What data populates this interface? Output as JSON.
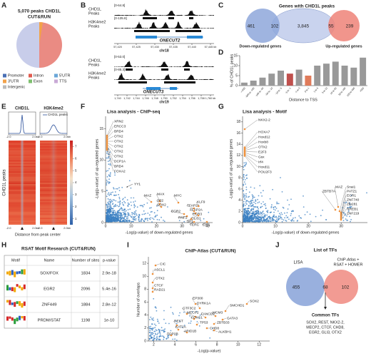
{
  "panel_a": {
    "label": "A",
    "title_lines": [
      "5,070 peaks CHD1L",
      "CUT&RUN"
    ],
    "legend": [
      "Promoter",
      "Intron",
      "5'UTR",
      "3'UTR",
      "Exon",
      "TTS",
      "Intergenic"
    ],
    "legend_colors": [
      "#4a6fb5",
      "#e05b4f",
      "#6aa7d8",
      "#f2a24a",
      "#7dbf6e",
      "#c9a9d6",
      "#bbbbbb"
    ]
  },
  "panel_b": {
    "label": "B",
    "track_labels": [
      [
        "CHD1L",
        "Peaks"
      ],
      [
        "H3K4me2",
        "Peaks"
      ]
    ],
    "regions": [
      {
        "ranges": [
          "[0-64.8]",
          "[0-135.8]"
        ],
        "gene": "ONECUT2",
        "chrom": "chr18",
        "ticks": [
          "57,420",
          "57,425",
          "57,430",
          "57,435",
          "57,440",
          "57,445 kb"
        ]
      },
      {
        "ranges": [
          "[0-53.0]",
          "[0-85.3]"
        ],
        "gene": "ONECUT3",
        "chrom": "chr19",
        "ticks": [
          "1,740",
          "1,742",
          "1,744",
          "1,746",
          "1,748",
          "1,750",
          "1,752",
          "1,754",
          "1,756",
          "1,758",
          "1,760 kb"
        ]
      }
    ]
  },
  "panel_c": {
    "label": "C",
    "title": "Genes with CHD1L peaks",
    "counts": [
      "461",
      "102",
      "3,845",
      "55",
      "239"
    ],
    "set_labels": [
      "Down-regulated genes",
      "Up-regulated genes"
    ]
  },
  "panel_d": {
    "label": "D",
    "type": "bar",
    "ylabel": "% of CHD1L peaks",
    "xlabel": "Distance to TSS",
    "categories": [
      "<-500",
      "-500 to -100",
      "-100 to -50",
      "-50 to -10",
      "-10 to -5",
      "-5 to -1",
      "-1 to 0",
      "0 to 1",
      "1 to 5",
      "5 to 10",
      "10 to 50",
      "50 to 100",
      "100 to 500",
      ">500"
    ],
    "values": [
      1.5,
      2.5,
      4,
      6,
      7.5,
      6,
      8,
      5,
      10,
      11,
      12,
      10,
      9,
      14
    ],
    "colors": [
      "#999999",
      "#999999",
      "#999999",
      "#999999",
      "#999999",
      "#c0504d",
      "#999999",
      "#e07b5a",
      "#999999",
      "#999999",
      "#999999",
      "#999999",
      "#999999",
      "#999999"
    ],
    "ylim": [
      0,
      15
    ],
    "yticks": [
      0,
      5,
      10,
      15
    ]
  },
  "panel_e": {
    "label": "E",
    "columns": [
      "CHD1L",
      "H3K4me2"
    ],
    "legend": "CHD1L peaks",
    "ylabel": "CHD1L peaks",
    "xlabel": "Distance from peak center",
    "edge_ticks": [
      "-2.0",
      "2.0kb"
    ],
    "colorbar_lim": [
      0.5,
      7.5
    ],
    "colorbar_ticks": [
      1,
      2,
      3,
      4,
      5,
      6,
      7
    ]
  },
  "panel_f": {
    "label": "F",
    "title": "Lisa analysis - ChIP-seq",
    "xlabel": "-Log(p-value) of down-regulated genes",
    "ylabel": "-Log(p-value) of up-regulated genes",
    "xlim": [
      0,
      42
    ],
    "ylim": [
      0,
      17
    ],
    "xticks": [
      0,
      10,
      20,
      30,
      40
    ],
    "yticks": [
      0,
      5,
      10,
      15
    ],
    "annotations": [
      "XRN2",
      "ERCC3",
      "BRD4",
      "OTX2",
      "OTX2",
      "OTX2",
      "OTX2",
      "OTX2",
      "DCP1A",
      "BRD4",
      "FOXA2",
      "YY1",
      "MAZ",
      "MAX",
      "MYC",
      "SP2",
      "SOX2",
      "TFAP2A",
      "KLF9",
      "TFAP2A",
      "EGR3",
      "GLIS1",
      "EGR2",
      "RNF2",
      "SP1",
      "TERC",
      "ERG"
    ]
  },
  "panel_g": {
    "label": "G",
    "title": "Lisa analysis - Motif",
    "xlabel": "-Log(p-value) of down-regulated genes",
    "ylabel": "-Log(p-value) of up-regulated genes",
    "xlim": [
      0,
      38
    ],
    "ylim": [
      0,
      19
    ],
    "xticks": [
      0,
      10,
      20,
      30
    ],
    "yticks": [
      0,
      2,
      4,
      6,
      8,
      10,
      12,
      14,
      16,
      18
    ],
    "annotations": [
      "NKX2-2",
      "HOXA7",
      "Hoxd12",
      "Hoxb8",
      "OTX2",
      "E2F3",
      "Gsx",
      "Irf4",
      "Hoxd11",
      "POU2F3",
      "ZBTB7A",
      "MAZ",
      "Snai1",
      "PATZ1",
      "EGR1",
      "ZNF740",
      "Zfp281",
      "RREB1",
      "ZNF219"
    ]
  },
  "panel_h": {
    "label": "H",
    "title": "RSAT Motif Research (CUT&RUN)",
    "columns": [
      "Motif",
      "Name",
      "Number of sites",
      "p-value"
    ],
    "rows": [
      [
        "SOX/FOX",
        "1834",
        "2.9e-18"
      ],
      [
        "EGR2",
        "2096",
        "5.4e-16"
      ],
      [
        "ZNF449",
        "1884",
        "2.8e-12"
      ],
      [
        "PRDM/STAT",
        "1198",
        "1e-10"
      ]
    ]
  },
  "panel_i": {
    "label": "I",
    "title": "ChIP-Atlas (CUT&RUN)",
    "xlabel": "-Log(p-value)",
    "ylabel": "Number of overlaps",
    "xlim": [
      1.5,
      13
    ],
    "ylim": [
      0,
      13
    ],
    "xticks": [
      2,
      4,
      6,
      8,
      10,
      12
    ],
    "yticks": [
      0,
      2,
      4,
      6,
      8,
      10,
      12
    ],
    "annotations": [
      "CIC",
      "ASCL1",
      "OTX2",
      "CTCF",
      "RAD21",
      "EP300",
      "DYRK1A",
      "SMCHD1",
      "SOX2",
      "GTF3C2",
      "MECP2",
      "FANCD2",
      "MCM3",
      "GATA3",
      "REST",
      "FOXC1",
      "TP53",
      "ZBTB33",
      "KAT2A",
      "ARID1B",
      "CHD8",
      "ALKBH1",
      "TOP2B"
    ]
  },
  "panel_j": {
    "label": "J",
    "title": "List of TFs",
    "sets": [
      "LISA",
      "ChIP-Atlas +",
      "RSAT + HOMER"
    ],
    "counts": [
      "455",
      "68",
      "102"
    ],
    "common_title": "Common TFs",
    "common_lines": [
      "SOX2, REST, NKX2-2,",
      "MECP2, CTCF, CHD8,",
      "EGR2, GLI3, OTX2"
    ]
  }
}
